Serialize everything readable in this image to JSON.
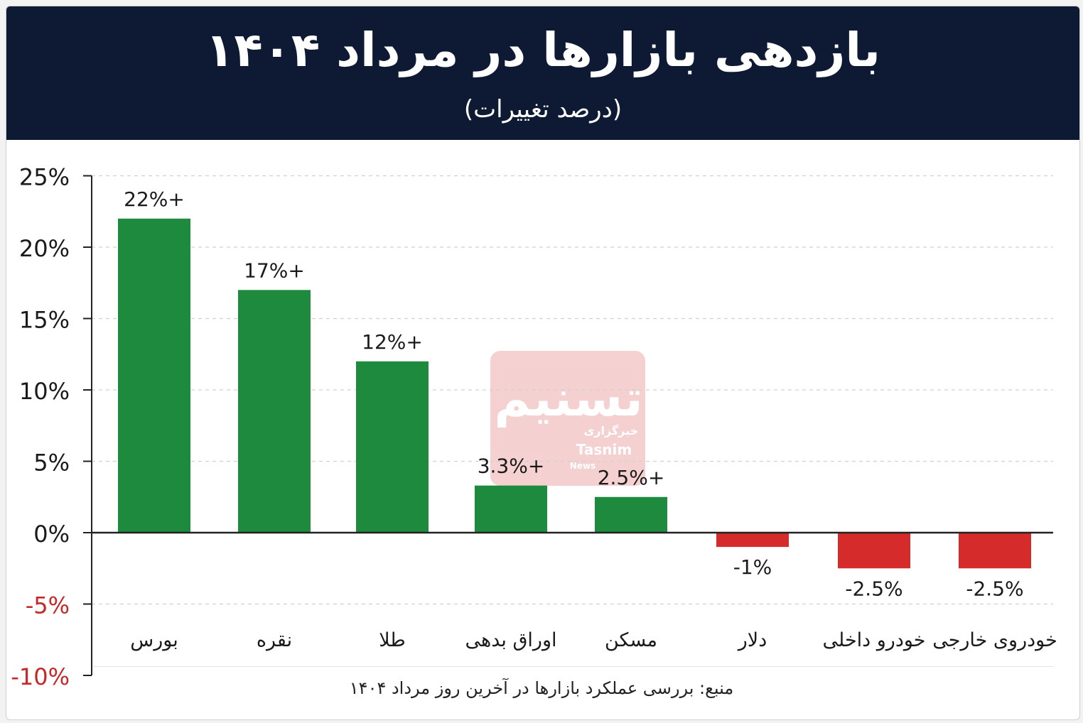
{
  "header": {
    "title": "بازدهی بازارها در مرداد ۱۴۰۴",
    "subtitle": "(درصد تغییرات)"
  },
  "footer": {
    "source": "منبع: بررسی عملکرد بازارها در آخرین روز مرداد ۱۴۰۴"
  },
  "watermark": {
    "text_fa": "تسنیم",
    "text_sub_fa": "خبرگزاری",
    "text_en": "Tasnim",
    "text_en2": "News"
  },
  "colors": {
    "header_bg": "#0e1a33",
    "positive": "#1e8a3e",
    "negative": "#d62b2b",
    "negative_tick": "#c62828",
    "watermark": "#d32f2f"
  },
  "chart_data": {
    "type": "bar",
    "title": "بازدهی بازارها در مرداد ۱۴۰۴",
    "subtitle": "(درصد تغییرات)",
    "xlabel": "",
    "ylabel": "",
    "ylim": [
      -10,
      25
    ],
    "yticks": [
      25,
      20,
      15,
      10,
      5,
      0,
      -5,
      -10
    ],
    "ytick_labels": [
      "25%",
      "20%",
      "15%",
      "10%",
      "5%",
      "0%",
      "-5%",
      "-10%"
    ],
    "grid": true,
    "categories": [
      "بورس",
      "نقره",
      "طلا",
      "اوراق بدهی",
      "مسکن",
      "دلار",
      "خودرو داخلی",
      "خودروی خارجی"
    ],
    "values": [
      22,
      17,
      12,
      3.3,
      2.5,
      -1,
      -2.5,
      -2.5
    ],
    "data_labels": [
      "22%+",
      "17%+",
      "12%+",
      "3.3%+",
      "2.5%+",
      "-1%",
      "-2.5%",
      "-2.5%"
    ]
  }
}
